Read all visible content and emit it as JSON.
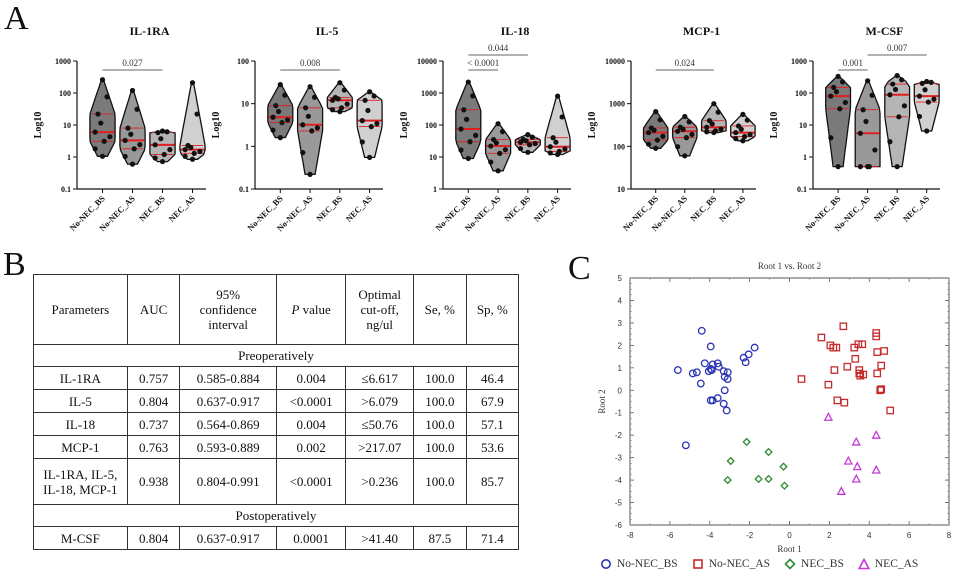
{
  "panels": {
    "a_label": "A",
    "b_label": "B",
    "c_label": "C"
  },
  "chart_data": [
    {
      "type": "violin",
      "title": "IL-1RA",
      "ylabel": "Log10",
      "yscale": "log",
      "ylim": [
        0.1,
        1000
      ],
      "yticks": [
        "0.1",
        "1",
        "10",
        "100",
        "1000"
      ],
      "categories": [
        "No-NEC_BS",
        "No-NEC_AS",
        "NEC_BS",
        "NEC_AS"
      ],
      "groups": [
        {
          "name": "No-NEC_BS",
          "min": 1.05,
          "max": 260,
          "median": 6,
          "q1": 3.1,
          "q3": 22,
          "fill": "#7a7a7a"
        },
        {
          "name": "No-NEC_AS",
          "min": 0.6,
          "max": 120,
          "median": 3.3,
          "q1": 1.8,
          "q3": 8,
          "fill": "#999999"
        },
        {
          "name": "NEC_BS",
          "min": 0.72,
          "max": 6.5,
          "median": 2.4,
          "q1": 1.2,
          "q3": 5.8,
          "fill": "#b5b5b5"
        },
        {
          "name": "NEC_AS",
          "min": 0.85,
          "max": 210,
          "median": 1.7,
          "q1": 1.3,
          "q3": 2.3,
          "fill": "#d0d0d0"
        }
      ],
      "comparisons": [
        {
          "from": "No-NEC_BS",
          "to": "NEC_BS",
          "p": "0.027"
        }
      ]
    },
    {
      "type": "violin",
      "title": "IL-5",
      "ylabel": "Log10",
      "yscale": "log",
      "ylim": [
        0.1,
        100
      ],
      "yticks": [
        "0.1",
        "1",
        "10",
        "100"
      ],
      "categories": [
        "No-NEC_BS",
        "No-NEC_AS",
        "NEC_BS",
        "NEC_AS"
      ],
      "groups": [
        {
          "name": "No-NEC_BS",
          "min": 1.6,
          "max": 28,
          "median": 4.8,
          "q1": 3.6,
          "q3": 9,
          "fill": "#7a7a7a"
        },
        {
          "name": "No-NEC_AS",
          "min": 0.22,
          "max": 25,
          "median": 3.2,
          "q1": 2.3,
          "q3": 8,
          "fill": "#999999"
        },
        {
          "name": "NEC_BS",
          "min": 6.5,
          "max": 31,
          "median": 12,
          "q1": 8,
          "q3": 14,
          "fill": "#b5b5b5"
        },
        {
          "name": "NEC_AS",
          "min": 0.55,
          "max": 19,
          "median": 4,
          "q1": 2.9,
          "q3": 12,
          "fill": "#d0d0d0"
        }
      ],
      "comparisons": [
        {
          "from": "No-NEC_BS",
          "to": "NEC_BS",
          "p": "0.008"
        }
      ]
    },
    {
      "type": "violin",
      "title": "IL-18",
      "ylabel": "Log10",
      "yscale": "log",
      "ylim": [
        1,
        10000
      ],
      "yticks": [
        "1",
        "10",
        "100",
        "1000",
        "10000"
      ],
      "categories": [
        "No-NEC_BS",
        "No-NEC_AS",
        "NEC_BS",
        "NEC_AS"
      ],
      "groups": [
        {
          "name": "No-NEC_BS",
          "min": 9,
          "max": 2200,
          "median": 75,
          "q1": 30,
          "q3": 300,
          "fill": "#7a7a7a"
        },
        {
          "name": "No-NEC_AS",
          "min": 3.7,
          "max": 110,
          "median": 22,
          "q1": 13,
          "q3": 35,
          "fill": "#999999"
        },
        {
          "name": "NEC_BS",
          "min": 14,
          "max": 50,
          "median": 29,
          "q1": 24,
          "q3": 35,
          "fill": "#b5b5b5"
        },
        {
          "name": "NEC_AS",
          "min": 12,
          "max": 800,
          "median": 21,
          "q1": 15,
          "q3": 40,
          "fill": "#d0d0d0"
        }
      ],
      "comparisons": [
        {
          "from": "No-NEC_BS",
          "to": "No-NEC_AS",
          "p": "< 0.0001"
        },
        {
          "from": "No-NEC_BS",
          "to": "NEC_BS",
          "p": "0.044"
        }
      ]
    },
    {
      "type": "violin",
      "title": "MCP-1",
      "ylabel": "Log10",
      "yscale": "log",
      "ylim": [
        10,
        10000
      ],
      "yticks": [
        "10",
        "100",
        "1000",
        "10000"
      ],
      "categories": [
        "No-NEC_BS",
        "No-NEC_AS",
        "NEC_BS",
        "NEC_AS"
      ],
      "groups": [
        {
          "name": "No-NEC_BS",
          "min": 90,
          "max": 650,
          "median": 210,
          "q1": 140,
          "q3": 270,
          "fill": "#7a7a7a"
        },
        {
          "name": "No-NEC_AS",
          "min": 60,
          "max": 500,
          "median": 225,
          "q1": 160,
          "q3": 280,
          "fill": "#999999"
        },
        {
          "name": "NEC_BS",
          "min": 210,
          "max": 1000,
          "median": 280,
          "q1": 230,
          "q3": 400,
          "fill": "#b5b5b5"
        },
        {
          "name": "NEC_AS",
          "min": 135,
          "max": 560,
          "median": 210,
          "q1": 170,
          "q3": 300,
          "fill": "#d0d0d0"
        }
      ],
      "comparisons": [
        {
          "from": "No-NEC_BS",
          "to": "NEC_BS",
          "p": "0.024"
        }
      ]
    },
    {
      "type": "violin",
      "title": "M-CSF",
      "ylabel": "Log10",
      "yscale": "log",
      "ylim": [
        0.1,
        1000
      ],
      "yticks": [
        "0.1",
        "1",
        "10",
        "100",
        "1000"
      ],
      "categories": [
        "No-NEC_BS",
        "No-NEC_AS",
        "NEC_BS",
        "NEC_AS"
      ],
      "groups": [
        {
          "name": "No-NEC_BS",
          "min": 0.5,
          "max": 330,
          "median": 80,
          "q1": 32,
          "q3": 150,
          "fill": "#7a7a7a"
        },
        {
          "name": "No-NEC_AS",
          "min": 0.5,
          "max": 240,
          "median": 5.5,
          "q1": 0.5,
          "q3": 30,
          "fill": "#999999"
        },
        {
          "name": "NEC_BS",
          "min": 0.5,
          "max": 350,
          "median": 88,
          "q1": 18,
          "q3": 190,
          "fill": "#b5b5b5"
        },
        {
          "name": "NEC_AS",
          "min": 6.5,
          "max": 230,
          "median": 80,
          "q1": 52,
          "q3": 200,
          "fill": "#d0d0d0"
        }
      ],
      "comparisons": [
        {
          "from": "No-NEC_BS",
          "to": "No-NEC_AS",
          "p": "0.001"
        },
        {
          "from": "No-NEC_AS",
          "to": "NEC_AS",
          "p": "0.007"
        }
      ]
    },
    {
      "type": "scatter",
      "title": "Root 1 vs. Root 2",
      "xlabel": "Root 1",
      "ylabel": "Root 2",
      "xlim": [
        -8,
        8
      ],
      "ylim": [
        -6,
        5
      ],
      "xticks": [
        -8,
        -6,
        -4,
        -2,
        0,
        2,
        4,
        6,
        8
      ],
      "yticks": [
        5,
        4,
        3,
        2,
        1,
        0,
        -1,
        -2,
        -3,
        -4,
        -5,
        -6
      ],
      "legend_position": "bottom",
      "series": [
        {
          "name": "No-NEC_BS",
          "marker": "circle",
          "color": "#2b35b5",
          "points": [
            [
              -5.2,
              -2.45
            ],
            [
              -4.4,
              2.65
            ],
            [
              -5.6,
              0.9
            ],
            [
              -4.85,
              0.75
            ],
            [
              -4.65,
              0.8
            ],
            [
              -4.45,
              0.3
            ],
            [
              -3.95,
              1.95
            ],
            [
              -4.25,
              1.2
            ],
            [
              -4.05,
              0.85
            ],
            [
              -3.9,
              0.9
            ],
            [
              -3.95,
              0.95
            ],
            [
              -3.85,
              1.15
            ],
            [
              -3.6,
              1.2
            ],
            [
              -3.55,
              1.05
            ],
            [
              -3.3,
              0.85
            ],
            [
              -3.1,
              0.8
            ],
            [
              -3.25,
              0.6
            ],
            [
              -3.1,
              0.5
            ],
            [
              -3.25,
              0.0
            ],
            [
              -3.95,
              -0.45
            ],
            [
              -3.85,
              -0.45
            ],
            [
              -3.6,
              -0.35
            ],
            [
              -3.3,
              -0.6
            ],
            [
              -3.15,
              -0.9
            ],
            [
              -2.3,
              1.45
            ],
            [
              -2.05,
              1.6
            ],
            [
              -1.75,
              1.9
            ],
            [
              -2.2,
              1.25
            ]
          ]
        },
        {
          "name": "No-NEC_AS",
          "marker": "square",
          "color": "#c62b2b",
          "points": [
            [
              2.7,
              2.85
            ],
            [
              1.6,
              2.35
            ],
            [
              2.05,
              2.0
            ],
            [
              2.2,
              1.9
            ],
            [
              2.35,
              1.9
            ],
            [
              3.25,
              1.9
            ],
            [
              3.45,
              2.05
            ],
            [
              3.65,
              2.05
            ],
            [
              4.35,
              2.55
            ],
            [
              4.35,
              2.4
            ],
            [
              4.4,
              1.7
            ],
            [
              4.75,
              1.75
            ],
            [
              3.3,
              1.4
            ],
            [
              2.25,
              0.9
            ],
            [
              2.9,
              1.05
            ],
            [
              3.5,
              0.9
            ],
            [
              3.5,
              0.75
            ],
            [
              3.55,
              0.65
            ],
            [
              3.7,
              0.7
            ],
            [
              4.4,
              0.75
            ],
            [
              4.6,
              1.1
            ],
            [
              0.6,
              0.5
            ],
            [
              1.95,
              0.25
            ],
            [
              4.6,
              0.05
            ],
            [
              4.55,
              0.0
            ],
            [
              2.4,
              -0.45
            ],
            [
              2.75,
              -0.55
            ],
            [
              5.05,
              -0.9
            ]
          ]
        },
        {
          "name": "NEC_BS",
          "marker": "diamond",
          "color": "#2e8b2e",
          "points": [
            [
              -2.15,
              -2.3
            ],
            [
              -2.95,
              -3.15
            ],
            [
              -3.1,
              -4.0
            ],
            [
              -1.05,
              -2.75
            ],
            [
              -0.3,
              -3.4
            ],
            [
              -1.55,
              -3.95
            ],
            [
              -1.05,
              -3.95
            ],
            [
              -0.25,
              -4.25
            ]
          ]
        },
        {
          "name": "NEC_AS",
          "marker": "triangle",
          "color": "#c43bd6",
          "points": [
            [
              1.95,
              -1.2
            ],
            [
              4.35,
              -2.0
            ],
            [
              3.35,
              -2.3
            ],
            [
              2.95,
              -3.15
            ],
            [
              3.4,
              -3.4
            ],
            [
              4.35,
              -3.55
            ],
            [
              3.35,
              -3.95
            ],
            [
              2.6,
              -4.5
            ]
          ]
        }
      ]
    }
  ],
  "table": {
    "headers": [
      "Parameters",
      "AUC",
      "95%\nconfidence\ninterval",
      "P value",
      "Optimal\ncut-off,\nng/ul",
      "Se, %",
      "Sp, %"
    ],
    "header_p_italic": "P",
    "header_p_rest": " value",
    "header_ci": [
      "95%",
      "confidence",
      "interval"
    ],
    "header_cutoff": [
      "Optimal",
      "cut-off,",
      "ng/ul"
    ],
    "sections": [
      {
        "title": "Preoperatively",
        "rows": [
          [
            "IL-1RA",
            "0.757",
            "0.585-0.884",
            "0.004",
            "≤6.617",
            "100.0",
            "46.4"
          ],
          [
            "IL-5",
            "0.804",
            "0.637-0.917",
            "<0.0001",
            ">6.079",
            "100.0",
            "67.9"
          ],
          [
            "IL-18",
            "0.737",
            "0.564-0.869",
            "0.004",
            "≤50.76",
            "100.0",
            "57.1"
          ],
          [
            "MCP-1",
            "0.763",
            "0.593-0.889",
            "0.002",
            ">217.07",
            "100.0",
            "53.6"
          ],
          [
            "IL-1RA, IL-5, IL-18, MCP-1",
            "0.938",
            "0.804-0.991",
            "<0.0001",
            ">0.236",
            "100.0",
            "85.7"
          ]
        ],
        "combo_label_lines": [
          "IL-1RA, IL-5,",
          "IL-18, MCP-1"
        ]
      },
      {
        "title": "Postoperatively",
        "rows": [
          [
            "M-CSF",
            "0.804",
            "0.637-0.917",
            "0.0001",
            ">41.40",
            "87.5",
            "71.4"
          ]
        ]
      }
    ]
  },
  "colors": {
    "median_line": "#e02020",
    "point": "#111111",
    "axis": "#111111"
  }
}
